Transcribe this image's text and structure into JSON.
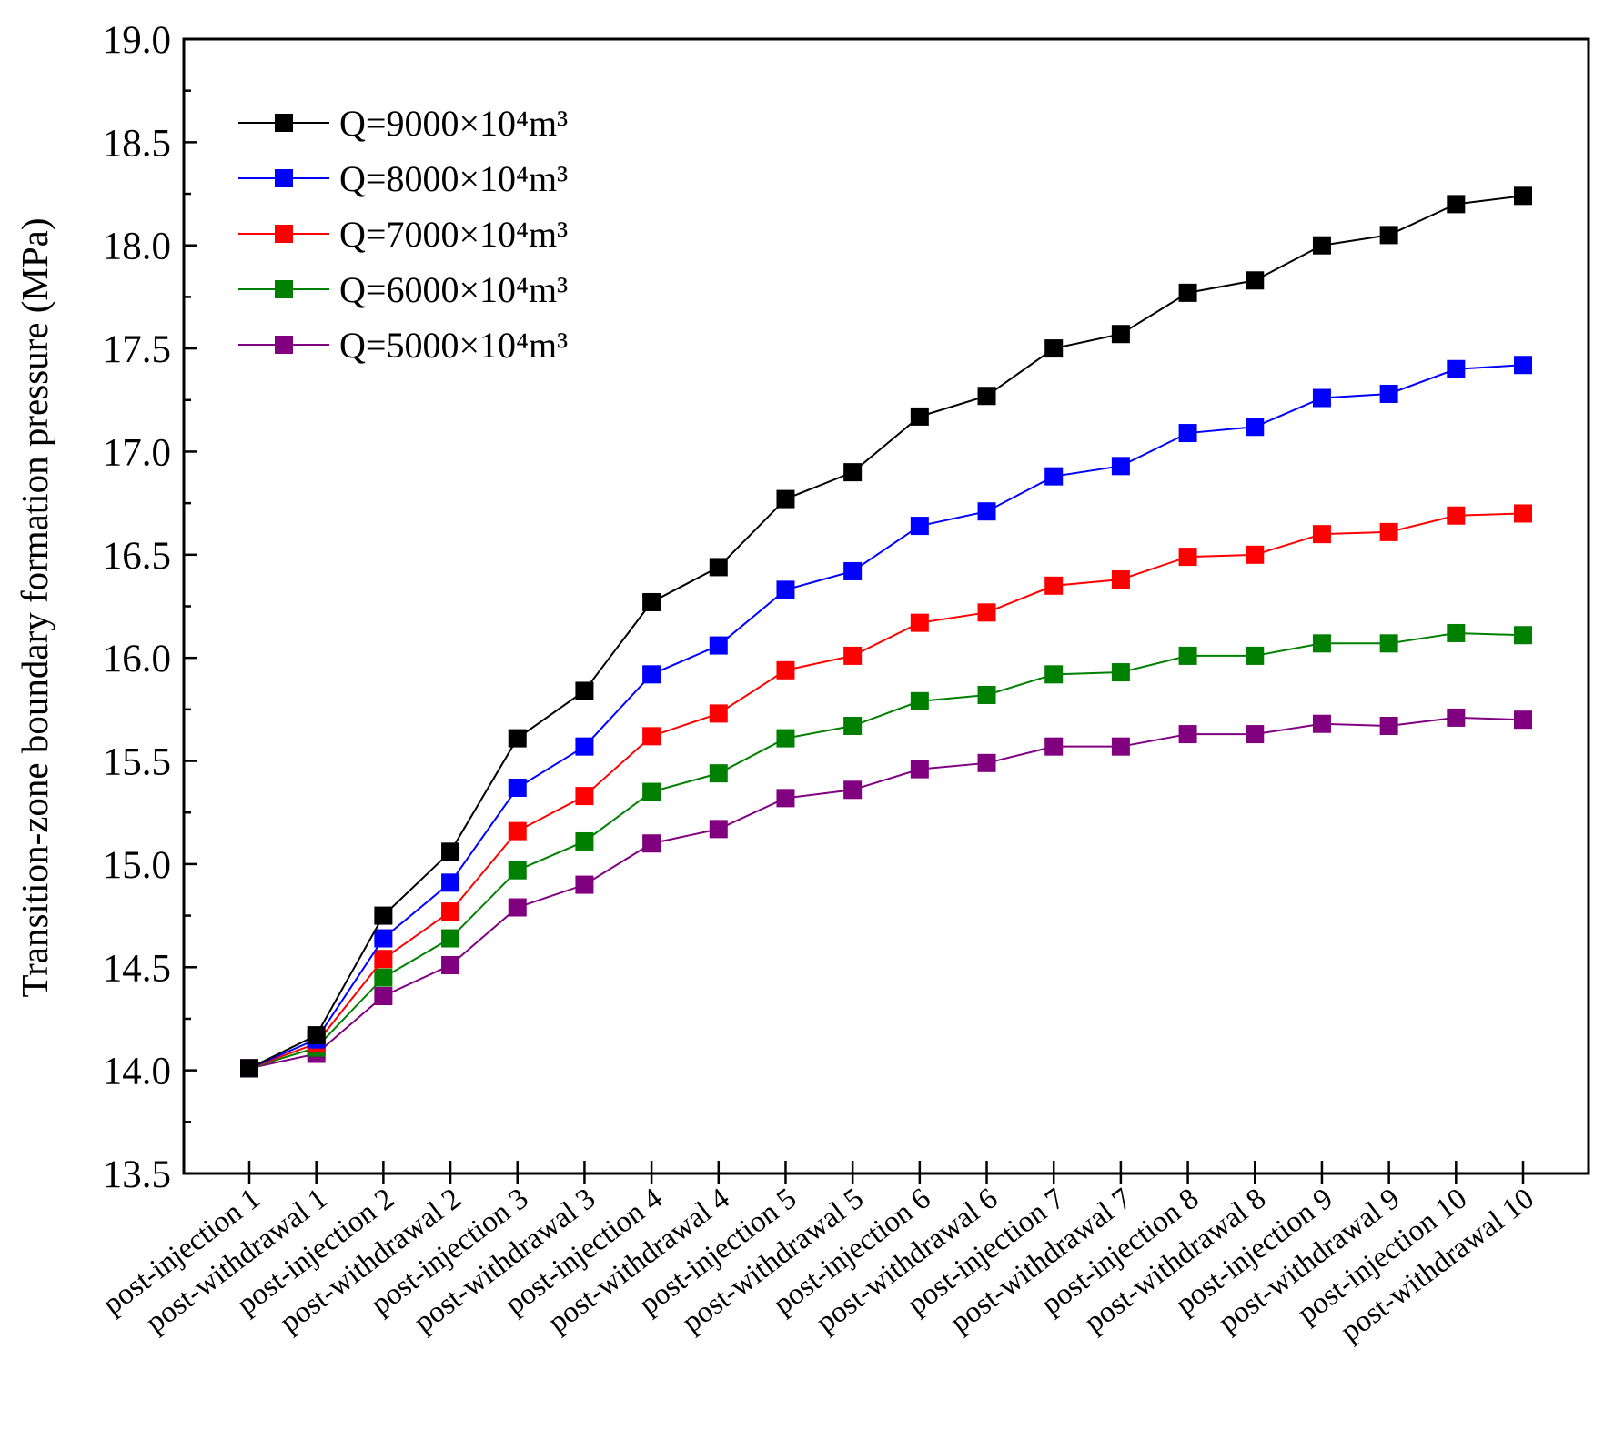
{
  "chart_data": {
    "type": "line",
    "title": "",
    "xlabel": "",
    "ylabel": "Transition-zone boundary formation pressure (MPa)",
    "ylim": [
      13.5,
      19.0
    ],
    "yticks": [
      "13.5",
      "14.0",
      "14.5",
      "15.0",
      "15.5",
      "16.0",
      "16.5",
      "17.0",
      "17.5",
      "18.0",
      "18.5",
      "19.0"
    ],
    "grid": false,
    "legend_position": "top-left",
    "categories": [
      "post-injection 1",
      "post-withdrawal 1",
      "post-injection 2",
      "post-withdrawal 2",
      "post-injection 3",
      "post-withdrawal 3",
      "post-injection 4",
      "post-withdrawal 4",
      "post-injection 5",
      "post-withdrawal 5",
      "post-injection 6",
      "post-withdrawal 6",
      "post-injection 7",
      "post-withdrawal 7",
      "post-injection 8",
      "post-withdrawal 8",
      "post-injection 9",
      "post-withdrawal 9",
      "post-injection 10",
      "post-withdrawal 10"
    ],
    "series": [
      {
        "name": "Q=9000×10⁴m³",
        "color": "#000000",
        "values": [
          14.01,
          14.17,
          14.75,
          15.06,
          15.61,
          15.84,
          16.27,
          16.44,
          16.77,
          16.9,
          17.17,
          17.27,
          17.5,
          17.57,
          17.77,
          17.83,
          18.0,
          18.05,
          18.2,
          18.24
        ]
      },
      {
        "name": "Q=8000×10⁴m³",
        "color": "#0000ff",
        "values": [
          14.01,
          14.15,
          14.64,
          14.91,
          15.37,
          15.57,
          15.92,
          16.06,
          16.33,
          16.42,
          16.64,
          16.71,
          16.88,
          16.93,
          17.09,
          17.12,
          17.26,
          17.28,
          17.4,
          17.42
        ]
      },
      {
        "name": "Q=7000×10⁴m³",
        "color": "#ff0000",
        "values": [
          14.01,
          14.13,
          14.54,
          14.77,
          15.16,
          15.33,
          15.62,
          15.73,
          15.94,
          16.01,
          16.17,
          16.22,
          16.35,
          16.38,
          16.49,
          16.5,
          16.6,
          16.61,
          16.69,
          16.7
        ]
      },
      {
        "name": "Q=6000×10⁴m³",
        "color": "#008000",
        "values": [
          14.01,
          14.11,
          14.45,
          14.64,
          14.97,
          15.11,
          15.35,
          15.44,
          15.61,
          15.67,
          15.79,
          15.82,
          15.92,
          15.93,
          16.01,
          16.01,
          16.07,
          16.07,
          16.12,
          16.11
        ]
      },
      {
        "name": "Q=5000×10⁴m³",
        "color": "#800080",
        "values": [
          14.01,
          14.08,
          14.36,
          14.51,
          14.79,
          14.9,
          15.1,
          15.17,
          15.32,
          15.36,
          15.46,
          15.49,
          15.57,
          15.57,
          15.63,
          15.63,
          15.68,
          15.67,
          15.71,
          15.7
        ]
      }
    ]
  }
}
